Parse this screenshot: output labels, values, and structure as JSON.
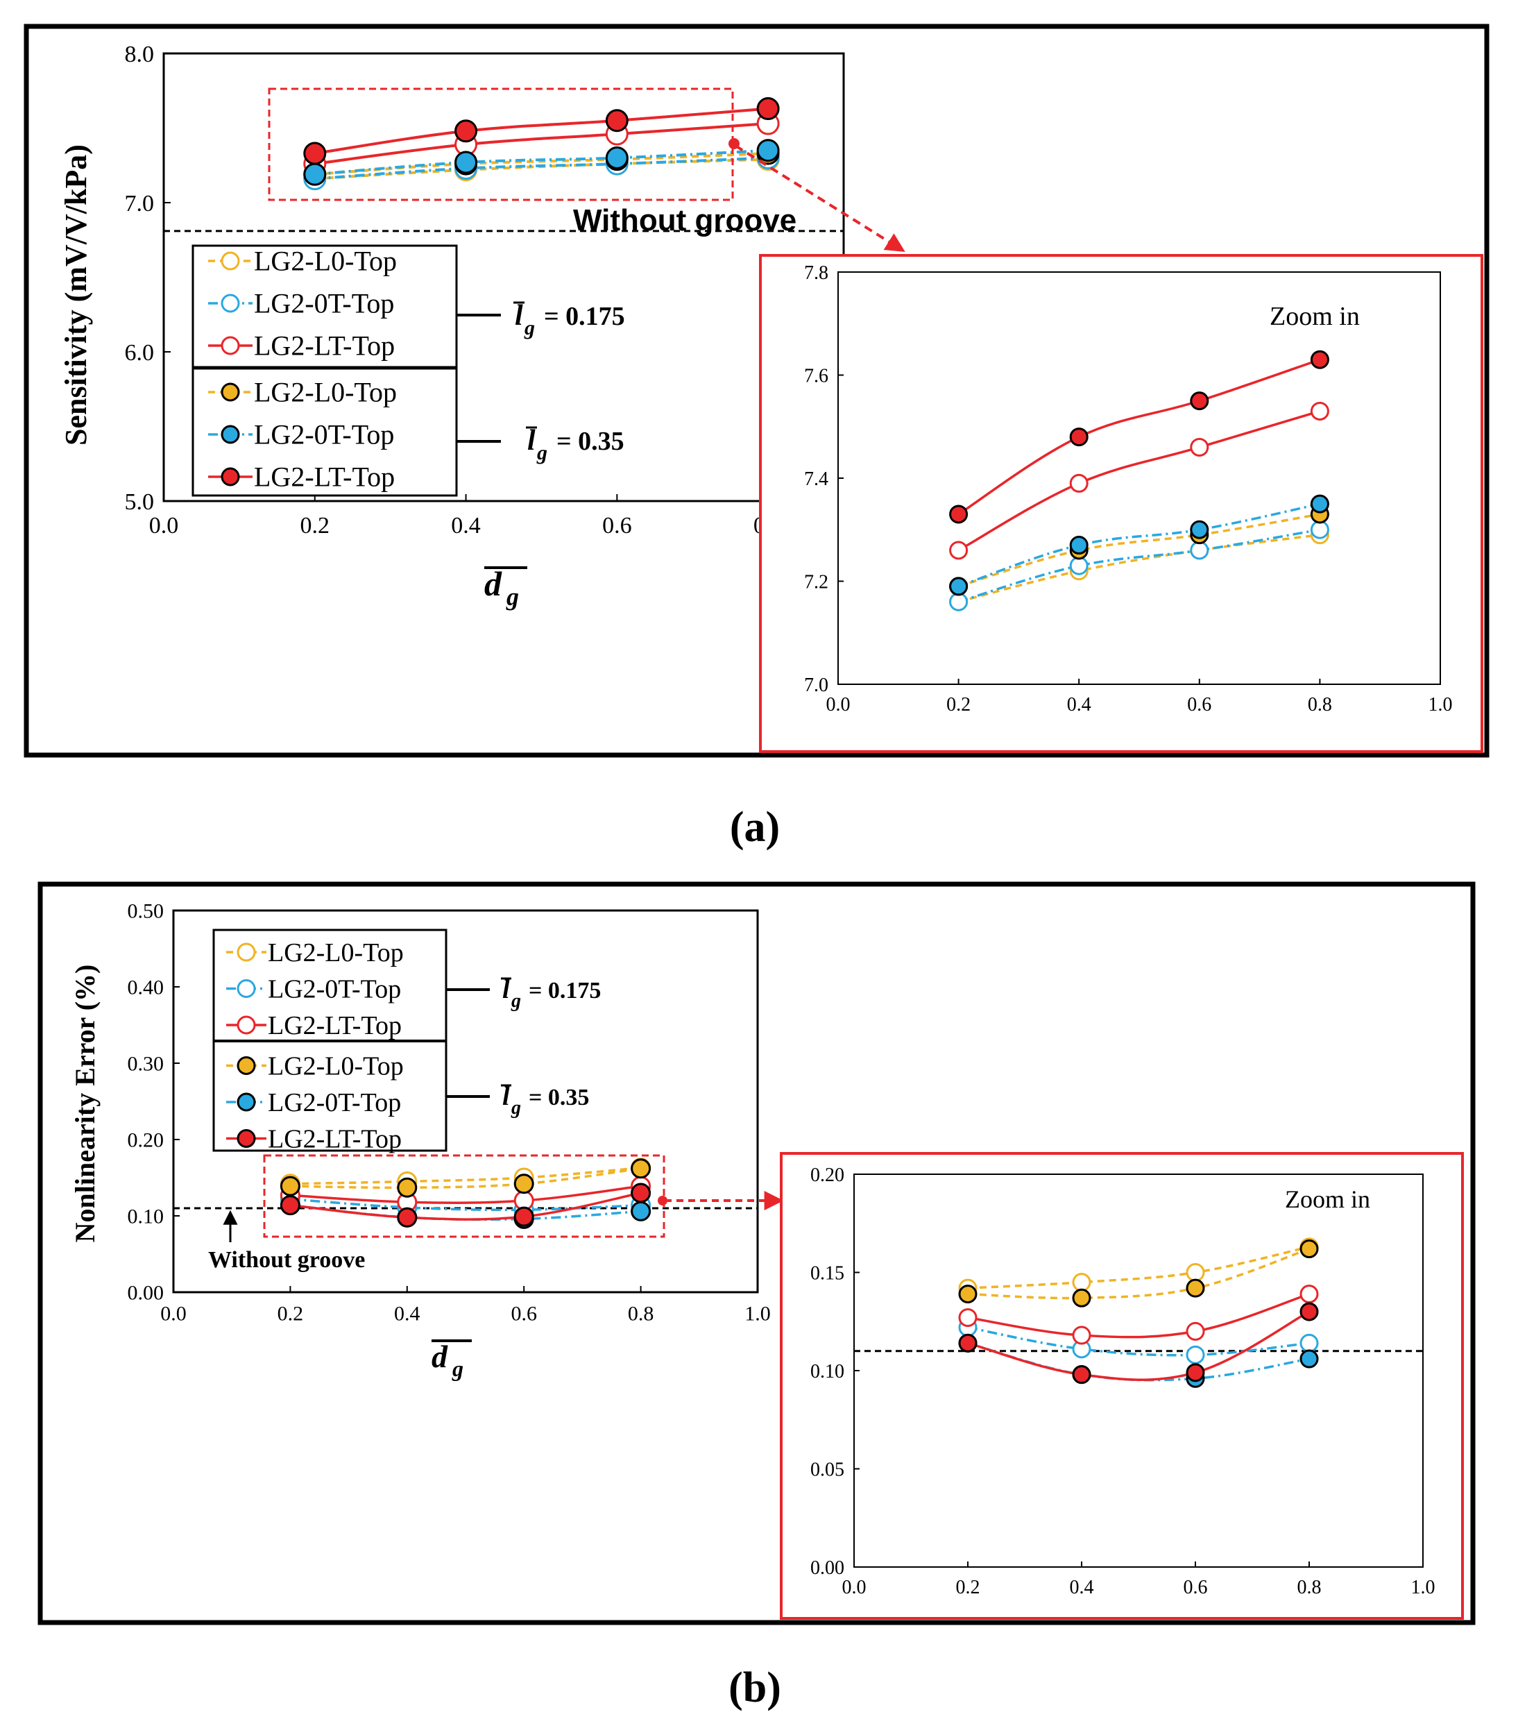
{
  "colors": {
    "yellow": "#F0B323",
    "blue": "#2AA8E0",
    "red": "#E8262A",
    "black": "#000000",
    "frame_red": "#E8262A"
  },
  "legend_labels": [
    "LG2-L0-Top",
    "LG2-0T-Top",
    "LG2-LT-Top",
    "LG2-L0-Top",
    "LG2-0T-Top",
    "LG2-LT-Top"
  ],
  "chart_data": [
    {
      "id": "a-main",
      "type": "line",
      "title": "",
      "panel_label": "(a)",
      "xlabel": "d_g",
      "ylabel": "Sensitivity (mV/V/kPa)",
      "xlim": [
        0.0,
        0.9
      ],
      "ylim": [
        5.0,
        8.0
      ],
      "xticks": [
        "0.0",
        "0.2",
        "0.4",
        "0.6",
        "0.8"
      ],
      "yticks": [
        "5.0",
        "6.0",
        "7.0",
        "8.0"
      ],
      "x": [
        0.2,
        0.4,
        0.6,
        0.8
      ],
      "reference_line": {
        "value": 6.81,
        "label": "Without groove"
      },
      "group_labels": [
        "l_g = 0.175",
        "l_g = 0.35"
      ],
      "series": [
        {
          "name": "LG2-L0-Top",
          "group": "l_g = 0.175",
          "values": [
            7.16,
            7.22,
            7.26,
            7.29
          ]
        },
        {
          "name": "LG2-0T-Top",
          "group": "l_g = 0.175",
          "values": [
            7.16,
            7.23,
            7.26,
            7.3
          ]
        },
        {
          "name": "LG2-LT-Top",
          "group": "l_g = 0.175",
          "values": [
            7.26,
            7.39,
            7.46,
            7.53
          ]
        },
        {
          "name": "LG2-L0-Top",
          "group": "l_g = 0.35",
          "values": [
            7.19,
            7.26,
            7.29,
            7.33
          ]
        },
        {
          "name": "LG2-0T-Top",
          "group": "l_g = 0.35",
          "values": [
            7.19,
            7.27,
            7.3,
            7.35
          ]
        },
        {
          "name": "LG2-LT-Top",
          "group": "l_g = 0.35",
          "values": [
            7.33,
            7.48,
            7.55,
            7.63
          ]
        }
      ]
    },
    {
      "id": "a-zoom",
      "type": "line",
      "title": "Zoom in",
      "xlabel": "",
      "ylabel": "",
      "xlim": [
        0.0,
        1.0
      ],
      "ylim": [
        7.0,
        7.8
      ],
      "xticks": [
        "0.0",
        "0.2",
        "0.4",
        "0.6",
        "0.8",
        "1.0"
      ],
      "yticks": [
        "7.0",
        "7.2",
        "7.4",
        "7.6",
        "7.8"
      ],
      "x": [
        0.2,
        0.4,
        0.6,
        0.8
      ],
      "series": [
        {
          "name": "LG2-L0-Top",
          "group": "l_g = 0.175",
          "values": [
            7.16,
            7.22,
            7.26,
            7.29
          ]
        },
        {
          "name": "LG2-0T-Top",
          "group": "l_g = 0.175",
          "values": [
            7.16,
            7.23,
            7.26,
            7.3
          ]
        },
        {
          "name": "LG2-LT-Top",
          "group": "l_g = 0.175",
          "values": [
            7.26,
            7.39,
            7.46,
            7.53
          ]
        },
        {
          "name": "LG2-L0-Top",
          "group": "l_g = 0.35",
          "values": [
            7.19,
            7.26,
            7.29,
            7.33
          ]
        },
        {
          "name": "LG2-0T-Top",
          "group": "l_g = 0.35",
          "values": [
            7.19,
            7.27,
            7.3,
            7.35
          ]
        },
        {
          "name": "LG2-LT-Top",
          "group": "l_g = 0.35",
          "values": [
            7.33,
            7.48,
            7.55,
            7.63
          ]
        }
      ]
    },
    {
      "id": "b-main",
      "type": "line",
      "title": "",
      "panel_label": "(b)",
      "xlabel": "d_g",
      "ylabel": "Nonlinearity Error (%)",
      "xlim": [
        0.0,
        1.0
      ],
      "ylim": [
        0.0,
        0.5
      ],
      "xticks": [
        "0.0",
        "0.2",
        "0.4",
        "0.6",
        "0.8",
        "1.0"
      ],
      "yticks": [
        "0.00",
        "0.10",
        "0.20",
        "0.30",
        "0.40",
        "0.50"
      ],
      "x": [
        0.2,
        0.4,
        0.6,
        0.8
      ],
      "reference_line": {
        "value": 0.11,
        "label": "Without groove"
      },
      "group_labels": [
        "l_g = 0.175",
        "l_g = 0.35"
      ],
      "series": [
        {
          "name": "LG2-L0-Top",
          "group": "l_g = 0.175",
          "values": [
            0.142,
            0.145,
            0.15,
            0.163
          ]
        },
        {
          "name": "LG2-0T-Top",
          "group": "l_g = 0.175",
          "values": [
            0.122,
            0.111,
            0.108,
            0.114
          ]
        },
        {
          "name": "LG2-LT-Top",
          "group": "l_g = 0.175",
          "values": [
            0.127,
            0.118,
            0.12,
            0.139
          ]
        },
        {
          "name": "LG2-L0-Top",
          "group": "l_g = 0.35",
          "values": [
            0.139,
            0.137,
            0.142,
            0.162
          ]
        },
        {
          "name": "LG2-0T-Top",
          "group": "l_g = 0.35",
          "values": [
            0.114,
            0.098,
            0.096,
            0.106
          ]
        },
        {
          "name": "LG2-LT-Top",
          "group": "l_g = 0.35",
          "values": [
            0.114,
            0.098,
            0.099,
            0.13
          ]
        }
      ]
    },
    {
      "id": "b-zoom",
      "type": "line",
      "title": "Zoom in",
      "xlabel": "",
      "ylabel": "",
      "xlim": [
        0.0,
        1.0
      ],
      "ylim": [
        0.0,
        0.2
      ],
      "xticks": [
        "0.0",
        "0.2",
        "0.4",
        "0.6",
        "0.8",
        "1.0"
      ],
      "yticks": [
        "0.00",
        "0.05",
        "0.10",
        "0.15",
        "0.20"
      ],
      "x": [
        0.2,
        0.4,
        0.6,
        0.8
      ],
      "reference_line": {
        "value": 0.11,
        "label": ""
      },
      "series": [
        {
          "name": "LG2-L0-Top",
          "group": "l_g = 0.175",
          "values": [
            0.142,
            0.145,
            0.15,
            0.163
          ]
        },
        {
          "name": "LG2-0T-Top",
          "group": "l_g = 0.175",
          "values": [
            0.122,
            0.111,
            0.108,
            0.114
          ]
        },
        {
          "name": "LG2-LT-Top",
          "group": "l_g = 0.175",
          "values": [
            0.127,
            0.118,
            0.12,
            0.139
          ]
        },
        {
          "name": "LG2-L0-Top",
          "group": "l_g = 0.35",
          "values": [
            0.139,
            0.137,
            0.142,
            0.162
          ]
        },
        {
          "name": "LG2-0T-Top",
          "group": "l_g = 0.35",
          "values": [
            0.114,
            0.098,
            0.096,
            0.106
          ]
        },
        {
          "name": "LG2-LT-Top",
          "group": "l_g = 0.35",
          "values": [
            0.114,
            0.098,
            0.099,
            0.13
          ]
        }
      ]
    }
  ],
  "labels": {
    "without_groove": "Without groove",
    "zoom_in": "Zoom in",
    "panel_a": "(a)",
    "panel_b": "(b)",
    "group_small_prefix": "l",
    "group_small_sub": "g",
    "group_small_value": "= 0.175",
    "group_large_value": "= 0.35",
    "x_axis_main": "d",
    "x_axis_sub": "g"
  }
}
